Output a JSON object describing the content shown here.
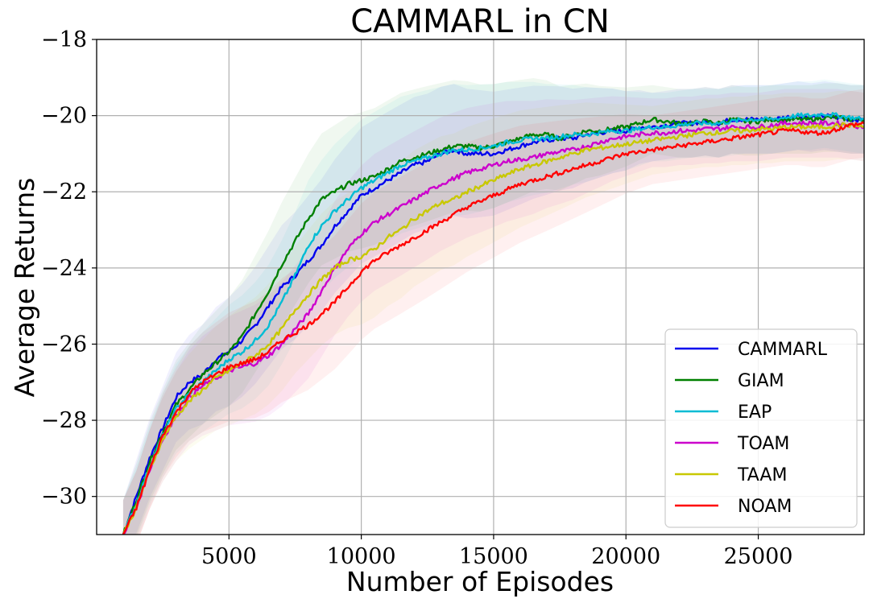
{
  "chart_data": {
    "type": "line",
    "title": "CAMMARL in CN",
    "xlabel": "Number of Episodes",
    "ylabel": "Average Returns",
    "xlim": [
      0,
      29000
    ],
    "ylim": [
      -31,
      -18
    ],
    "xticks": [
      5000,
      10000,
      15000,
      20000,
      25000
    ],
    "xtick_labels": [
      "5000",
      "10000",
      "15000",
      "20000",
      "25000"
    ],
    "yticks": [
      -30,
      -28,
      -26,
      -24,
      -22,
      -20,
      -18
    ],
    "ytick_labels": [
      "−30",
      "−28",
      "−26",
      "−24",
      "−22",
      "−20",
      "−18"
    ],
    "grid": true,
    "legend_position": "lower-right",
    "x": [
      1000,
      1500,
      2000,
      2500,
      3000,
      3500,
      4000,
      4500,
      5000,
      5500,
      6000,
      6500,
      7000,
      7500,
      8000,
      8500,
      9000,
      9500,
      10000,
      10500,
      11000,
      11500,
      12000,
      12500,
      13000,
      13500,
      14000,
      14500,
      15000,
      15500,
      16000,
      16500,
      17000,
      17500,
      18000,
      18500,
      19000,
      19500,
      20000,
      20500,
      21000,
      21500,
      22000,
      22500,
      23000,
      23500,
      24000,
      24500,
      25000,
      25500,
      26000,
      26500,
      27000,
      27500,
      28000,
      28500,
      29000
    ],
    "series": [
      {
        "name": "CAMMARL",
        "color": "#0000ee",
        "values": [
          -31.0,
          -30.0,
          -29.0,
          -28.2,
          -27.4,
          -27.0,
          -26.8,
          -26.4,
          -26.2,
          -25.9,
          -25.5,
          -25.0,
          -24.5,
          -24.2,
          -23.8,
          -23.4,
          -22.9,
          -22.5,
          -22.1,
          -21.9,
          -21.7,
          -21.5,
          -21.3,
          -21.2,
          -21.0,
          -20.9,
          -21.0,
          -21.0,
          -21.0,
          -20.9,
          -20.8,
          -20.7,
          -20.65,
          -20.6,
          -20.6,
          -20.5,
          -20.45,
          -20.4,
          -20.4,
          -20.3,
          -20.3,
          -20.25,
          -20.2,
          -20.2,
          -20.15,
          -20.2,
          -20.1,
          -20.1,
          -20.1,
          -20.1,
          -20.05,
          -20.0,
          -20.05,
          -20.0,
          -20.05,
          -20.1,
          -20.1
        ]
      },
      {
        "name": "GIAM",
        "color": "#008000",
        "values": [
          -31.0,
          -30.1,
          -29.1,
          -28.3,
          -27.6,
          -27.2,
          -26.8,
          -26.5,
          -26.2,
          -25.8,
          -25.2,
          -24.6,
          -23.9,
          -23.3,
          -22.7,
          -22.2,
          -22.0,
          -21.8,
          -21.7,
          -21.6,
          -21.4,
          -21.2,
          -21.1,
          -21.0,
          -20.9,
          -20.8,
          -20.8,
          -20.85,
          -20.8,
          -20.7,
          -20.6,
          -20.5,
          -20.5,
          -20.6,
          -20.5,
          -20.4,
          -20.4,
          -20.35,
          -20.3,
          -20.2,
          -20.1,
          -20.15,
          -20.2,
          -20.2,
          -20.15,
          -20.2,
          -20.1,
          -20.15,
          -20.15,
          -20.1,
          -20.1,
          -20.1,
          -20.1,
          -20.05,
          -20.05,
          -20.1,
          -20.1
        ]
      },
      {
        "name": "EAP",
        "color": "#00bcd4",
        "values": [
          -31.0,
          -30.2,
          -29.2,
          -28.4,
          -27.7,
          -27.3,
          -27.0,
          -26.7,
          -26.4,
          -26.2,
          -25.9,
          -25.5,
          -24.9,
          -24.2,
          -23.4,
          -22.9,
          -22.5,
          -22.2,
          -21.9,
          -21.7,
          -21.5,
          -21.3,
          -21.2,
          -21.1,
          -21.0,
          -20.9,
          -20.9,
          -20.85,
          -20.8,
          -20.7,
          -20.65,
          -20.6,
          -20.6,
          -20.55,
          -20.5,
          -20.5,
          -20.45,
          -20.4,
          -20.4,
          -20.35,
          -20.3,
          -20.3,
          -20.25,
          -20.2,
          -20.2,
          -20.2,
          -20.15,
          -20.1,
          -20.1,
          -20.1,
          -20.05,
          -20.0,
          -20.0,
          -19.95,
          -20.0,
          -20.05,
          -20.1
        ]
      },
      {
        "name": "TOAM",
        "color": "#cc00cc",
        "values": [
          -31.0,
          -30.3,
          -29.3,
          -28.5,
          -27.9,
          -27.4,
          -27.1,
          -26.9,
          -26.7,
          -26.6,
          -26.5,
          -26.3,
          -26.0,
          -25.6,
          -25.2,
          -24.6,
          -24.0,
          -23.5,
          -23.1,
          -22.8,
          -22.6,
          -22.4,
          -22.2,
          -22.0,
          -21.8,
          -21.65,
          -21.5,
          -21.4,
          -21.3,
          -21.2,
          -21.15,
          -21.1,
          -21.0,
          -20.95,
          -20.9,
          -20.8,
          -20.7,
          -20.6,
          -20.55,
          -20.5,
          -20.45,
          -20.45,
          -20.4,
          -20.4,
          -20.35,
          -20.35,
          -20.3,
          -20.3,
          -20.3,
          -20.25,
          -20.2,
          -20.2,
          -20.2,
          -20.2,
          -20.2,
          -20.25,
          -20.3
        ]
      },
      {
        "name": "TAAM",
        "color": "#c8c800",
        "values": [
          -31.0,
          -30.3,
          -29.3,
          -28.5,
          -27.9,
          -27.5,
          -27.2,
          -26.9,
          -26.7,
          -26.5,
          -26.3,
          -26.0,
          -25.6,
          -25.1,
          -24.7,
          -24.3,
          -24.0,
          -23.8,
          -23.7,
          -23.5,
          -23.2,
          -23.0,
          -22.7,
          -22.5,
          -22.3,
          -22.2,
          -22.0,
          -21.85,
          -21.7,
          -21.55,
          -21.4,
          -21.3,
          -21.2,
          -21.1,
          -21.0,
          -20.9,
          -20.85,
          -20.8,
          -20.75,
          -20.7,
          -20.65,
          -20.6,
          -20.55,
          -20.5,
          -20.45,
          -20.45,
          -20.4,
          -20.4,
          -20.35,
          -20.35,
          -20.3,
          -20.3,
          -20.3,
          -20.3,
          -20.25,
          -20.25,
          -20.3
        ]
      },
      {
        "name": "NOAM",
        "color": "#ff0000",
        "values": [
          -31.0,
          -30.3,
          -29.3,
          -28.4,
          -27.8,
          -27.3,
          -27.0,
          -26.8,
          -26.6,
          -26.5,
          -26.4,
          -26.2,
          -25.9,
          -25.7,
          -25.5,
          -25.2,
          -24.9,
          -24.5,
          -24.1,
          -23.8,
          -23.6,
          -23.4,
          -23.2,
          -23.0,
          -22.8,
          -22.6,
          -22.4,
          -22.25,
          -22.1,
          -21.95,
          -21.8,
          -21.7,
          -21.6,
          -21.5,
          -21.4,
          -21.3,
          -21.2,
          -21.1,
          -21.0,
          -20.95,
          -20.9,
          -20.85,
          -20.8,
          -20.75,
          -20.7,
          -20.65,
          -20.6,
          -20.55,
          -20.5,
          -20.45,
          -20.4,
          -20.4,
          -20.45,
          -20.45,
          -20.35,
          -20.25,
          -20.2
        ]
      }
    ]
  }
}
